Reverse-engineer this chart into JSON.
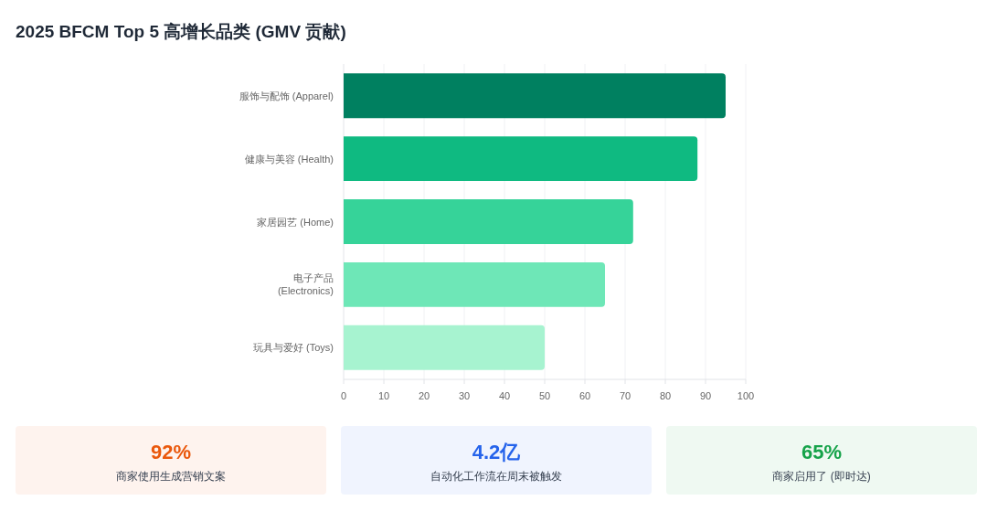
{
  "chart_data": [
    {
      "type": "bar",
      "title": "2025 BFCM Top 5 高增长品类 (GMV 贡献)",
      "orientation": "horizontal",
      "categories": [
        "服饰与配饰 (Apparel)",
        "健康与美容 (Health)",
        "家居园艺 (Home)",
        "电子产品 (Electronics)",
        "玩具与爱好 (Toys)"
      ],
      "values": [
        95,
        88,
        72,
        65,
        50
      ],
      "colors": [
        "#008060",
        "#0fba81",
        "#36d399",
        "#6ee7b7",
        "#a7f3d0"
      ],
      "xlim": [
        0,
        100
      ],
      "xticks": [
        0,
        10,
        20,
        30,
        40,
        50,
        60,
        70,
        80,
        90,
        100
      ],
      "grid": "x"
    },
    {
      "type": "other",
      "title": "92%",
      "subtitle": "商家使用生成营销文案",
      "color": "#ea580c"
    },
    {
      "type": "other",
      "title": "4.2亿",
      "subtitle": "自动化工作流在周末被触发",
      "color": "#2563eb"
    },
    {
      "type": "other",
      "title": "65%",
      "subtitle": "商家启用了 (即时达)",
      "color": "#16a34a"
    }
  ]
}
